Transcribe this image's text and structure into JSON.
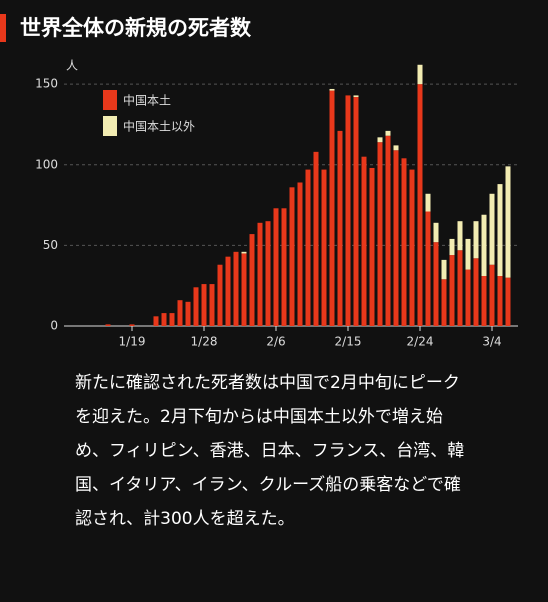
{
  "chart_data": {
    "type": "stacked-bar",
    "title": "世界全体の新規の死者数",
    "y_label": "人",
    "note": "新たに確認された死者数は中国で2月中旬にピークを迎えた。2月下旬からは中国本土以外で増え始め、フィリピン、香港、日本、フランス、台湾、韓国、イタリア、イラン、クルーズ船の乗客などで確認され、計300人を超えた。",
    "categories": [
      null,
      null,
      null,
      "1/19",
      null,
      null,
      null,
      null,
      null,
      null,
      null,
      null,
      "1/28",
      null,
      null,
      null,
      null,
      null,
      null,
      null,
      null,
      "2/6",
      null,
      null,
      null,
      null,
      null,
      null,
      null,
      null,
      "2/15",
      null,
      null,
      null,
      null,
      null,
      null,
      null,
      null,
      "2/24",
      null,
      null,
      null,
      null,
      null,
      null,
      null,
      null,
      "3/4",
      null,
      null
    ],
    "series": [
      {
        "name": "中国本土",
        "color": "#e8381b",
        "values": [
          1,
          0,
          0,
          1,
          0,
          0,
          6,
          8,
          8,
          16,
          15,
          24,
          26,
          26,
          38,
          43,
          46,
          45,
          57,
          64,
          65,
          73,
          73,
          86,
          89,
          97,
          108,
          97,
          146,
          121,
          143,
          142,
          105,
          98,
          114,
          118,
          109,
          104,
          97,
          150,
          71,
          52,
          29,
          44,
          47,
          35,
          42,
          31,
          38,
          31,
          30
        ]
      },
      {
        "name": "中国本土以外",
        "color": "#f2ecb2",
        "values": [
          0,
          0,
          0,
          0,
          0,
          0,
          0,
          0,
          0,
          0,
          0,
          0,
          0,
          0,
          0,
          0,
          0,
          1,
          0,
          0,
          0,
          0,
          0,
          0,
          0,
          0,
          0,
          0,
          1,
          0,
          0,
          1,
          0,
          0,
          3,
          3,
          3,
          0,
          0,
          12,
          11,
          12,
          12,
          10,
          18,
          19,
          23,
          38,
          44,
          57,
          69
        ]
      }
    ],
    "ylim": [
      0,
      160
    ],
    "yticks": [
      0,
      50,
      100,
      150
    ],
    "grid": true,
    "legend": "top-left"
  }
}
